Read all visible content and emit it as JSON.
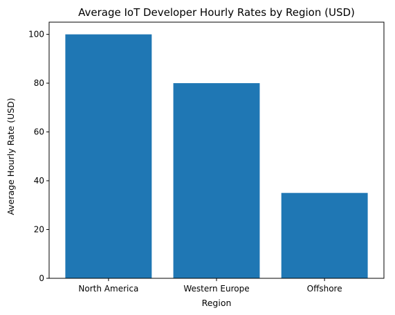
{
  "chart_data": {
    "type": "bar",
    "title": "Average IoT Developer Hourly Rates by Region (USD)",
    "xlabel": "Region",
    "ylabel": "Average Hourly Rate (USD)",
    "categories": [
      "North America",
      "Western Europe",
      "Offshore"
    ],
    "values": [
      100,
      80,
      35
    ],
    "ylim": [
      0,
      105
    ],
    "yticks": [
      0,
      20,
      40,
      60,
      80,
      100
    ],
    "grid": false,
    "bar_color": "#1f77b4"
  }
}
